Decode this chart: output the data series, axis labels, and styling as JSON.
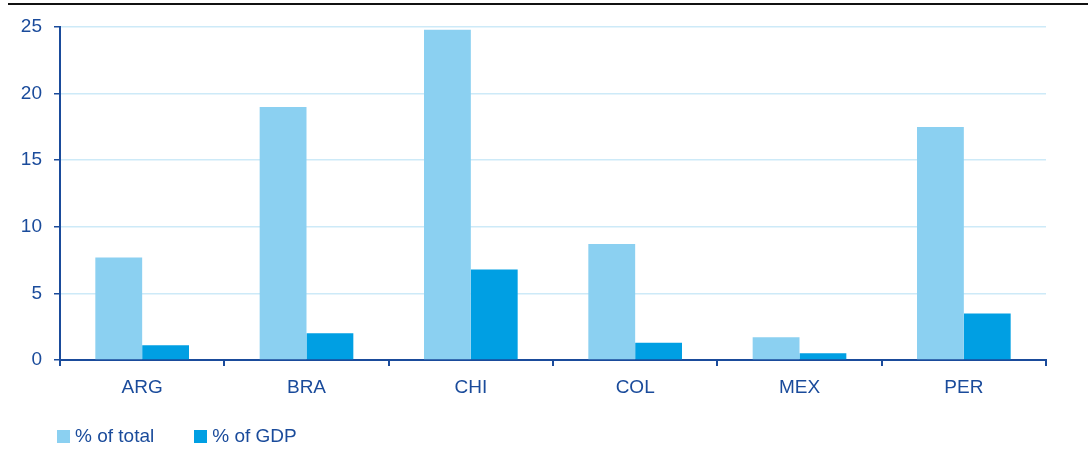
{
  "chart_data": {
    "type": "bar",
    "categories": [
      "ARG",
      "BRA",
      "CHI",
      "COL",
      "MEX",
      "PER"
    ],
    "series": [
      {
        "name": "% of total",
        "color": "#8bd0f1",
        "values": [
          7.7,
          19,
          24.8,
          8.7,
          1.7,
          17.5
        ]
      },
      {
        "name": "% of GDP",
        "color": "#009fe3",
        "values": [
          1.1,
          2,
          6.8,
          1.3,
          0.5,
          3.5
        ]
      }
    ],
    "ylim": [
      0,
      25
    ],
    "yticks": [
      0,
      5,
      10,
      15,
      20,
      25
    ],
    "grid": "y",
    "legend": "bottom left"
  }
}
